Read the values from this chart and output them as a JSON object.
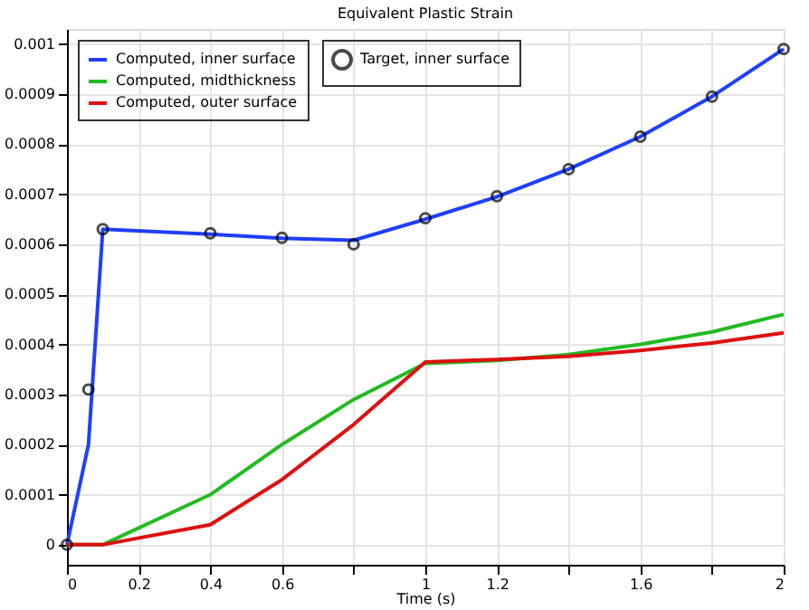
{
  "chart_data": {
    "type": "line",
    "title": "Equivalent Plastic Strain",
    "xlabel": "Time (s)",
    "xlim": [
      0,
      2
    ],
    "ylim": [
      -4e-05,
      0.00103
    ],
    "xticks": [
      0,
      0.2,
      0.4,
      0.6,
      {
        "value": 0.8,
        "label": null
      },
      1,
      1.2,
      {
        "value": 1.4,
        "label": null
      },
      1.6,
      {
        "value": 1.8,
        "label": null
      },
      2
    ],
    "yticks": [
      0,
      0.0001,
      0.0002,
      0.0003,
      0.0004,
      0.0005,
      0.0006,
      0.0007,
      0.0008,
      0.0009,
      0.001
    ],
    "grid": true,
    "legend": "top left",
    "line_style": "solid",
    "series": [
      {
        "name": "Computed, inner surface",
        "color": "#1f3fff",
        "x": [
          0,
          0.06,
          0.1,
          0.4,
          0.6,
          0.8,
          1,
          1.2,
          1.4,
          1.6,
          1.8,
          2
        ],
        "values": [
          0,
          0.0002,
          0.00063,
          0.00062,
          0.000612,
          0.000608,
          0.00065,
          0.000695,
          0.00075,
          0.000815,
          0.000895,
          0.00099
        ]
      },
      {
        "name": "Computed, midthickness",
        "color": "#22bb22",
        "x": [
          0,
          0.1,
          0.4,
          0.6,
          0.8,
          1,
          1.2,
          1.4,
          1.6,
          1.8,
          2
        ],
        "values": [
          0,
          0,
          0.0001,
          0.0002,
          0.00029,
          0.000362,
          0.000368,
          0.00038,
          0.0004,
          0.000425,
          0.00046
        ]
      },
      {
        "name": "Computed, outer surface",
        "color": "#dd1111",
        "x": [
          0,
          0.1,
          0.4,
          0.6,
          0.8,
          1,
          1.2,
          1.4,
          1.6,
          1.8,
          2
        ],
        "values": [
          0,
          0,
          4e-05,
          0.00013,
          0.00024,
          0.000365,
          0.00037,
          0.000376,
          0.000388,
          0.000403,
          0.000423
        ]
      },
      {
        "name": "Target, inner surface",
        "color": "#000000",
        "type": "scatter",
        "marker": "circle",
        "x": [
          0,
          0.06,
          0.1,
          0.4,
          0.6,
          0.8,
          1,
          1.2,
          1.4,
          1.6,
          1.8,
          2
        ],
        "values": [
          0,
          0.00031,
          0.00063,
          0.000622,
          0.000613,
          0.0006,
          0.000652,
          0.000696,
          0.00075,
          0.000815,
          0.000895,
          0.00099
        ]
      }
    ]
  }
}
